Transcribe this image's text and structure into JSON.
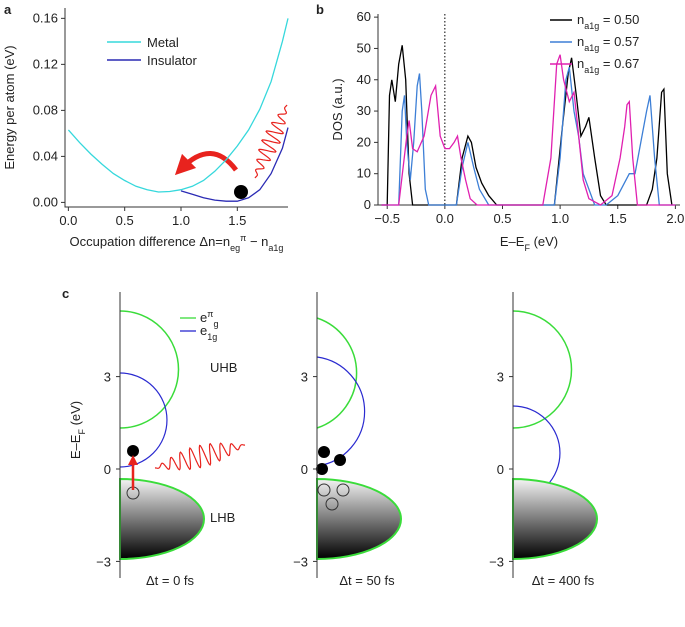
{
  "chart_data": [
    {
      "type": "line",
      "panel_label": "a",
      "x_label": [
        "Occupation difference Δn=n",
        "eg",
        "π",
        " − n",
        "a1g"
      ],
      "y_label": "Energy per atom (eV)",
      "x": [
        0,
        0.1,
        0.2,
        0.3,
        0.4,
        0.5,
        0.6,
        0.7,
        0.8,
        0.9,
        1.0,
        1.1,
        1.2,
        1.3,
        1.4,
        1.5,
        1.6,
        1.7,
        1.8,
        1.9,
        1.95
      ],
      "series": [
        {
          "name": "Metal",
          "color": "#36d8dc",
          "values": [
            0.063,
            0.052,
            0.042,
            0.033,
            0.025,
            0.019,
            0.014,
            0.011,
            0.009,
            0.0095,
            0.011,
            0.014,
            0.019,
            0.027,
            0.037,
            0.049,
            0.063,
            0.081,
            0.105,
            0.14,
            0.16
          ]
        },
        {
          "name": "Insulator",
          "color": "#2a2ab4",
          "values": [
            null,
            null,
            null,
            null,
            null,
            null,
            null,
            null,
            null,
            null,
            0.01,
            0.007,
            0.004,
            0.002,
            0.001,
            0.001,
            0.004,
            0.011,
            0.025,
            0.047,
            0.065
          ]
        }
      ],
      "xlim": [
        -0.03,
        1.95
      ],
      "ylim": [
        -0.004,
        0.169
      ],
      "xticks": [
        {
          "value": 0,
          "label": "0.0"
        },
        {
          "value": 0.5,
          "label": "0.5"
        },
        {
          "value": 1.0,
          "label": "1.0"
        },
        {
          "value": 1.5,
          "label": "1.5"
        }
      ],
      "yticks": [
        {
          "value": 0,
          "label": "0.00"
        },
        {
          "value": 0.04,
          "label": "0.04"
        },
        {
          "value": 0.08,
          "label": "0.08"
        },
        {
          "value": 0.12,
          "label": "0.12"
        },
        {
          "value": 0.16,
          "label": "0.16"
        }
      ],
      "legend": "upper left"
    },
    {
      "type": "line",
      "panel_label": "b",
      "x_label": [
        "E–E",
        "F",
        " (eV)"
      ],
      "y_label": "DOS (a.u.)",
      "series": [
        {
          "name": [
            "n",
            "a1g",
            " = 0.50"
          ],
          "color": "#000000",
          "x": [
            -0.55,
            -0.5,
            -0.48,
            -0.46,
            -0.43,
            -0.4,
            -0.37,
            -0.34,
            -0.31,
            -0.28,
            0.1,
            0.15,
            0.2,
            0.23,
            0.27,
            0.32,
            0.38,
            0.45,
            0.95,
            1.02,
            1.07,
            1.1,
            1.14,
            1.18,
            1.22,
            1.25,
            1.3,
            1.35,
            1.4,
            1.75,
            1.8,
            1.84,
            1.88,
            1.9,
            1.93,
            1.97
          ],
          "values": [
            0,
            0,
            35,
            40,
            33,
            45,
            51,
            40,
            10,
            0,
            0,
            15,
            22,
            20,
            12,
            7,
            3,
            0,
            0,
            25,
            42,
            47,
            35,
            22,
            25,
            28,
            15,
            3,
            0,
            0,
            5,
            15,
            36,
            37,
            10,
            0
          ]
        },
        {
          "name": [
            "n",
            "a1g",
            " = 0.57"
          ],
          "color": "#3d7fd6",
          "x": [
            -0.55,
            -0.4,
            -0.37,
            -0.35,
            -0.33,
            -0.3,
            -0.27,
            -0.24,
            -0.22,
            -0.2,
            -0.17,
            -0.14,
            0.1,
            0.15,
            0.2,
            0.25,
            0.3,
            0.38,
            0.95,
            1.0,
            1.05,
            1.08,
            1.12,
            1.16,
            1.2,
            1.3,
            1.4,
            1.5,
            1.6,
            1.65,
            1.7,
            1.75,
            1.78,
            1.82,
            1.86,
            2.0
          ],
          "values": [
            0,
            0,
            30,
            35,
            20,
            8,
            20,
            38,
            42,
            30,
            5,
            0,
            0,
            12,
            20,
            12,
            5,
            0,
            0,
            15,
            40,
            44,
            30,
            22,
            10,
            0,
            0,
            3,
            10,
            10,
            20,
            30,
            35,
            15,
            0,
            0
          ]
        },
        {
          "name": [
            "n",
            "a1g",
            " = 0.67"
          ],
          "color": "#e020b0",
          "x": [
            -0.55,
            -0.4,
            -0.33,
            -0.31,
            -0.28,
            -0.24,
            -0.18,
            -0.12,
            -0.08,
            -0.04,
            0.0,
            0.04,
            0.08,
            0.11,
            0.14,
            0.18,
            0.22,
            0.28,
            0.85,
            0.92,
            0.97,
            1.0,
            1.03,
            1.08,
            1.12,
            1.15,
            1.2,
            1.25,
            1.35,
            1.45,
            1.52,
            1.56,
            1.58,
            1.6,
            1.63,
            1.67,
            2.0
          ],
          "values": [
            0,
            0,
            22,
            27,
            18,
            17,
            22,
            35,
            38,
            22,
            18,
            18,
            20,
            22,
            15,
            8,
            2,
            0,
            0,
            15,
            45,
            48,
            40,
            33,
            36,
            26,
            8,
            2,
            0,
            3,
            15,
            25,
            32,
            33,
            15,
            0,
            0
          ]
        }
      ],
      "xlim": [
        -0.58,
        2.04
      ],
      "ylim": [
        0,
        61
      ],
      "xticks": [
        {
          "value": -0.5,
          "label": "−0.5"
        },
        {
          "value": 0,
          "label": "0.0"
        },
        {
          "value": 0.5,
          "label": "0.5"
        },
        {
          "value": 1.0,
          "label": "1.0"
        },
        {
          "value": 1.5,
          "label": "1.5"
        },
        {
          "value": 2.0,
          "label": "2.0"
        }
      ],
      "yticks": [
        0,
        10,
        20,
        30,
        40,
        50,
        60
      ],
      "zero_line": true,
      "legend": "upper right"
    }
  ],
  "panel_c": {
    "panel_label": "c",
    "y_label": [
      "E–E",
      "F",
      " (eV)"
    ],
    "yticks": [
      3,
      0,
      {
        "value": -3,
        "label": "−3"
      }
    ],
    "legend": [
      [
        "e",
        "π",
        "g"
      ],
      [
        "e",
        "1g"
      ]
    ],
    "band_labels": [
      "UHB",
      "LHB"
    ],
    "time_labels": [
      "Δt = 0 fs",
      "Δt = 50 fs",
      "Δt = 400 fs"
    ]
  }
}
